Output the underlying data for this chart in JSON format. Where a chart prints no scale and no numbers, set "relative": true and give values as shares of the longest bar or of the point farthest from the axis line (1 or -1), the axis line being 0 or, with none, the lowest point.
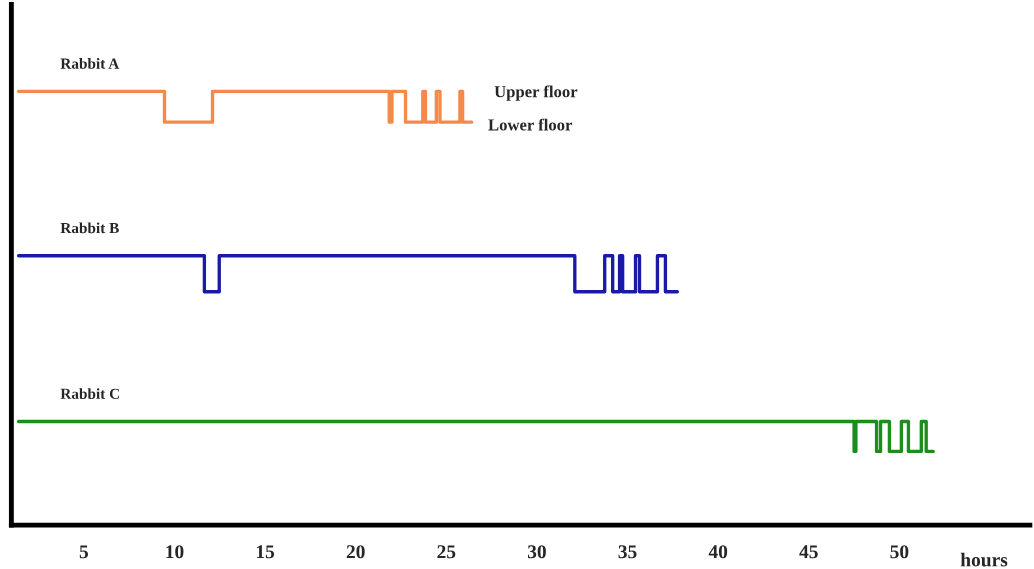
{
  "chart_data": {
    "type": "step",
    "relative": true,
    "xlabel": "hours",
    "xlim": [
      1,
      57.2
    ],
    "xticks": [
      5,
      10,
      15,
      20,
      25,
      30,
      35,
      40,
      45,
      50
    ],
    "grid": false,
    "legend": false,
    "series": [
      {
        "name": "Rabbit A",
        "color": "#f5894a",
        "x": [
          1.4,
          9.45,
          12.1,
          21.85,
          22.0,
          22.75,
          23.7,
          23.85,
          24.45,
          24.65,
          25.75,
          25.9,
          26.4
        ],
        "values": [
          1.0,
          0.929,
          1.0,
          0.929,
          1.0,
          0.929,
          1.0,
          0.929,
          1.0,
          0.929,
          1.0,
          0.929,
          0.929
        ]
      },
      {
        "name": "Rabbit B",
        "color": "#1a1aa8",
        "x": [
          1.4,
          11.65,
          12.47,
          32.09,
          33.74,
          34.18,
          34.56,
          34.73,
          35.44,
          35.66,
          36.65,
          37.09,
          37.75
        ],
        "values": [
          0.621,
          0.538,
          0.621,
          0.538,
          0.621,
          0.538,
          0.621,
          0.538,
          0.621,
          0.538,
          0.621,
          0.538,
          0.538
        ]
      },
      {
        "name": "Rabbit C",
        "color": "#1e8c1e",
        "x": [
          1.4,
          47.5,
          47.6,
          48.74,
          48.96,
          49.45,
          50.11,
          50.5,
          51.21,
          51.48,
          51.87
        ],
        "values": [
          0.239,
          0.17,
          0.239,
          0.17,
          0.239,
          0.17,
          0.239,
          0.17,
          0.239,
          0.17,
          0.17
        ]
      }
    ],
    "annotations": [
      "Upper floor",
      "Lower floor"
    ]
  }
}
